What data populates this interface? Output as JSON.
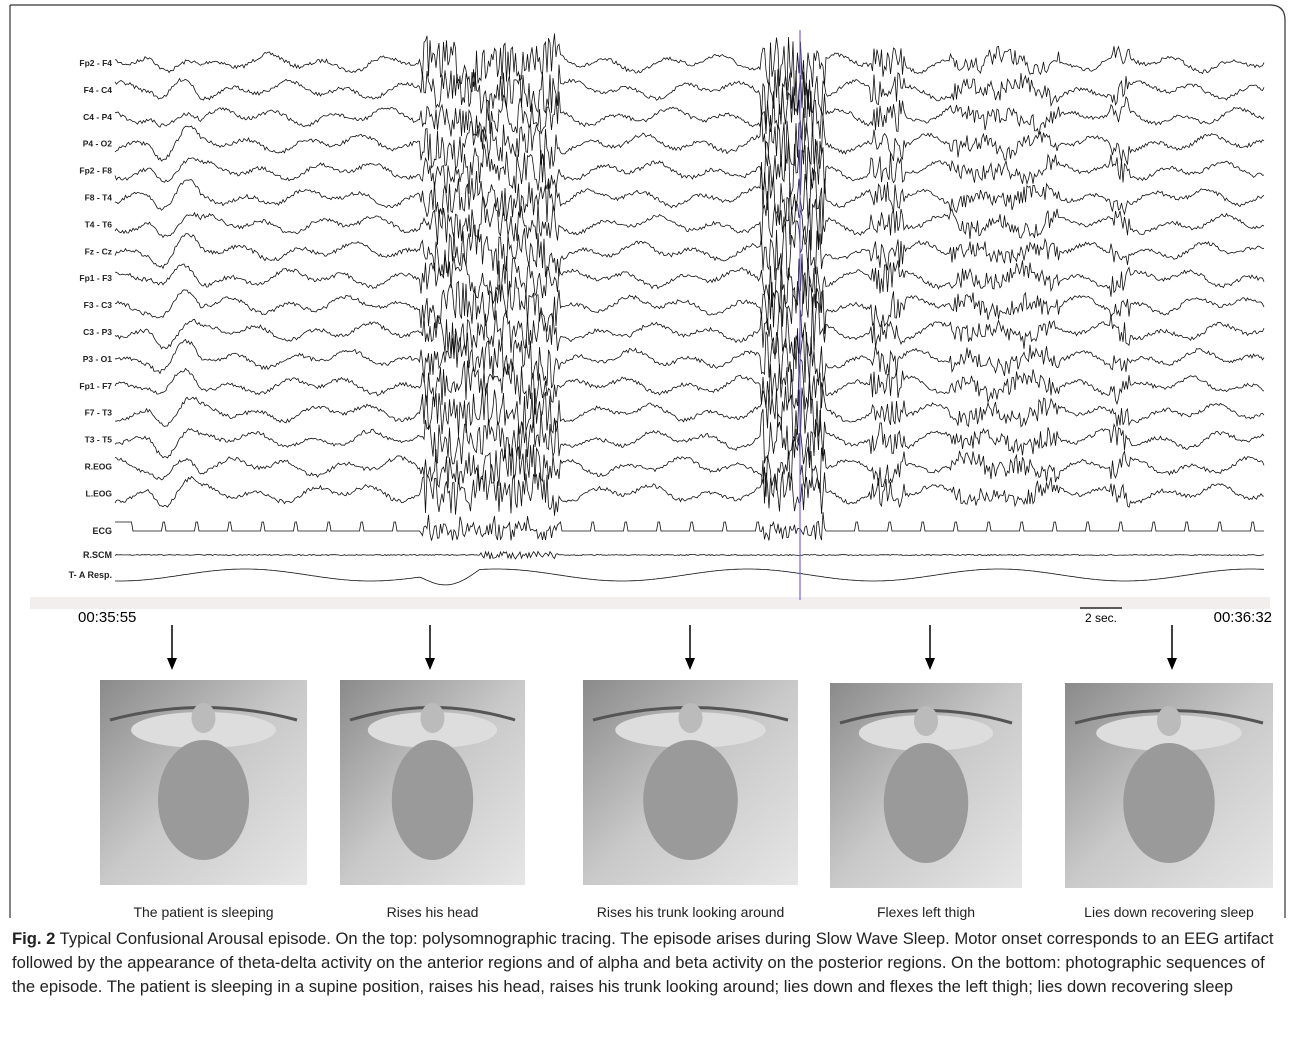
{
  "figure": {
    "channels": [
      "Fp2 - F4",
      "F4 - C4",
      "C4 - P4",
      "P4 - O2",
      "Fp2 - F8",
      "F8 - T4",
      "T4 - T6",
      "Fz - Cz",
      "Fp1 - F3",
      "F3 - C3",
      "C3 - P3",
      "P3 - O1",
      "Fp1 - F7",
      "F7 - T3",
      "T3 - T5",
      "R.EOG",
      "L.EOG",
      "ECG",
      "R.SCM",
      "T- A Resp."
    ],
    "time_start": "00:35:55",
    "time_end": "00:36:32",
    "scale_bar": "2 sec.",
    "frames": [
      "The patient is sleeping",
      "Rises his head",
      "Rises his trunk looking around",
      "Flexes left thigh",
      "Lies down recovering sleep"
    ],
    "caption": {
      "label": "Fig. 2",
      "text": "Typical Confusional Arousal episode. On the top: polysomnographic tracing. The episode arises during Slow Wave Sleep. Motor onset corresponds to an EEG artifact followed by the appearance of theta-delta activity on the anterior regions and of alpha and beta activity on the posterior regions. On the bottom: photographic sequences of the episode. The patient is sleeping in a supine position, raises his head, raises his trunk looking around; lies down and flexes the left thigh; lies down recovering sleep"
    }
  }
}
